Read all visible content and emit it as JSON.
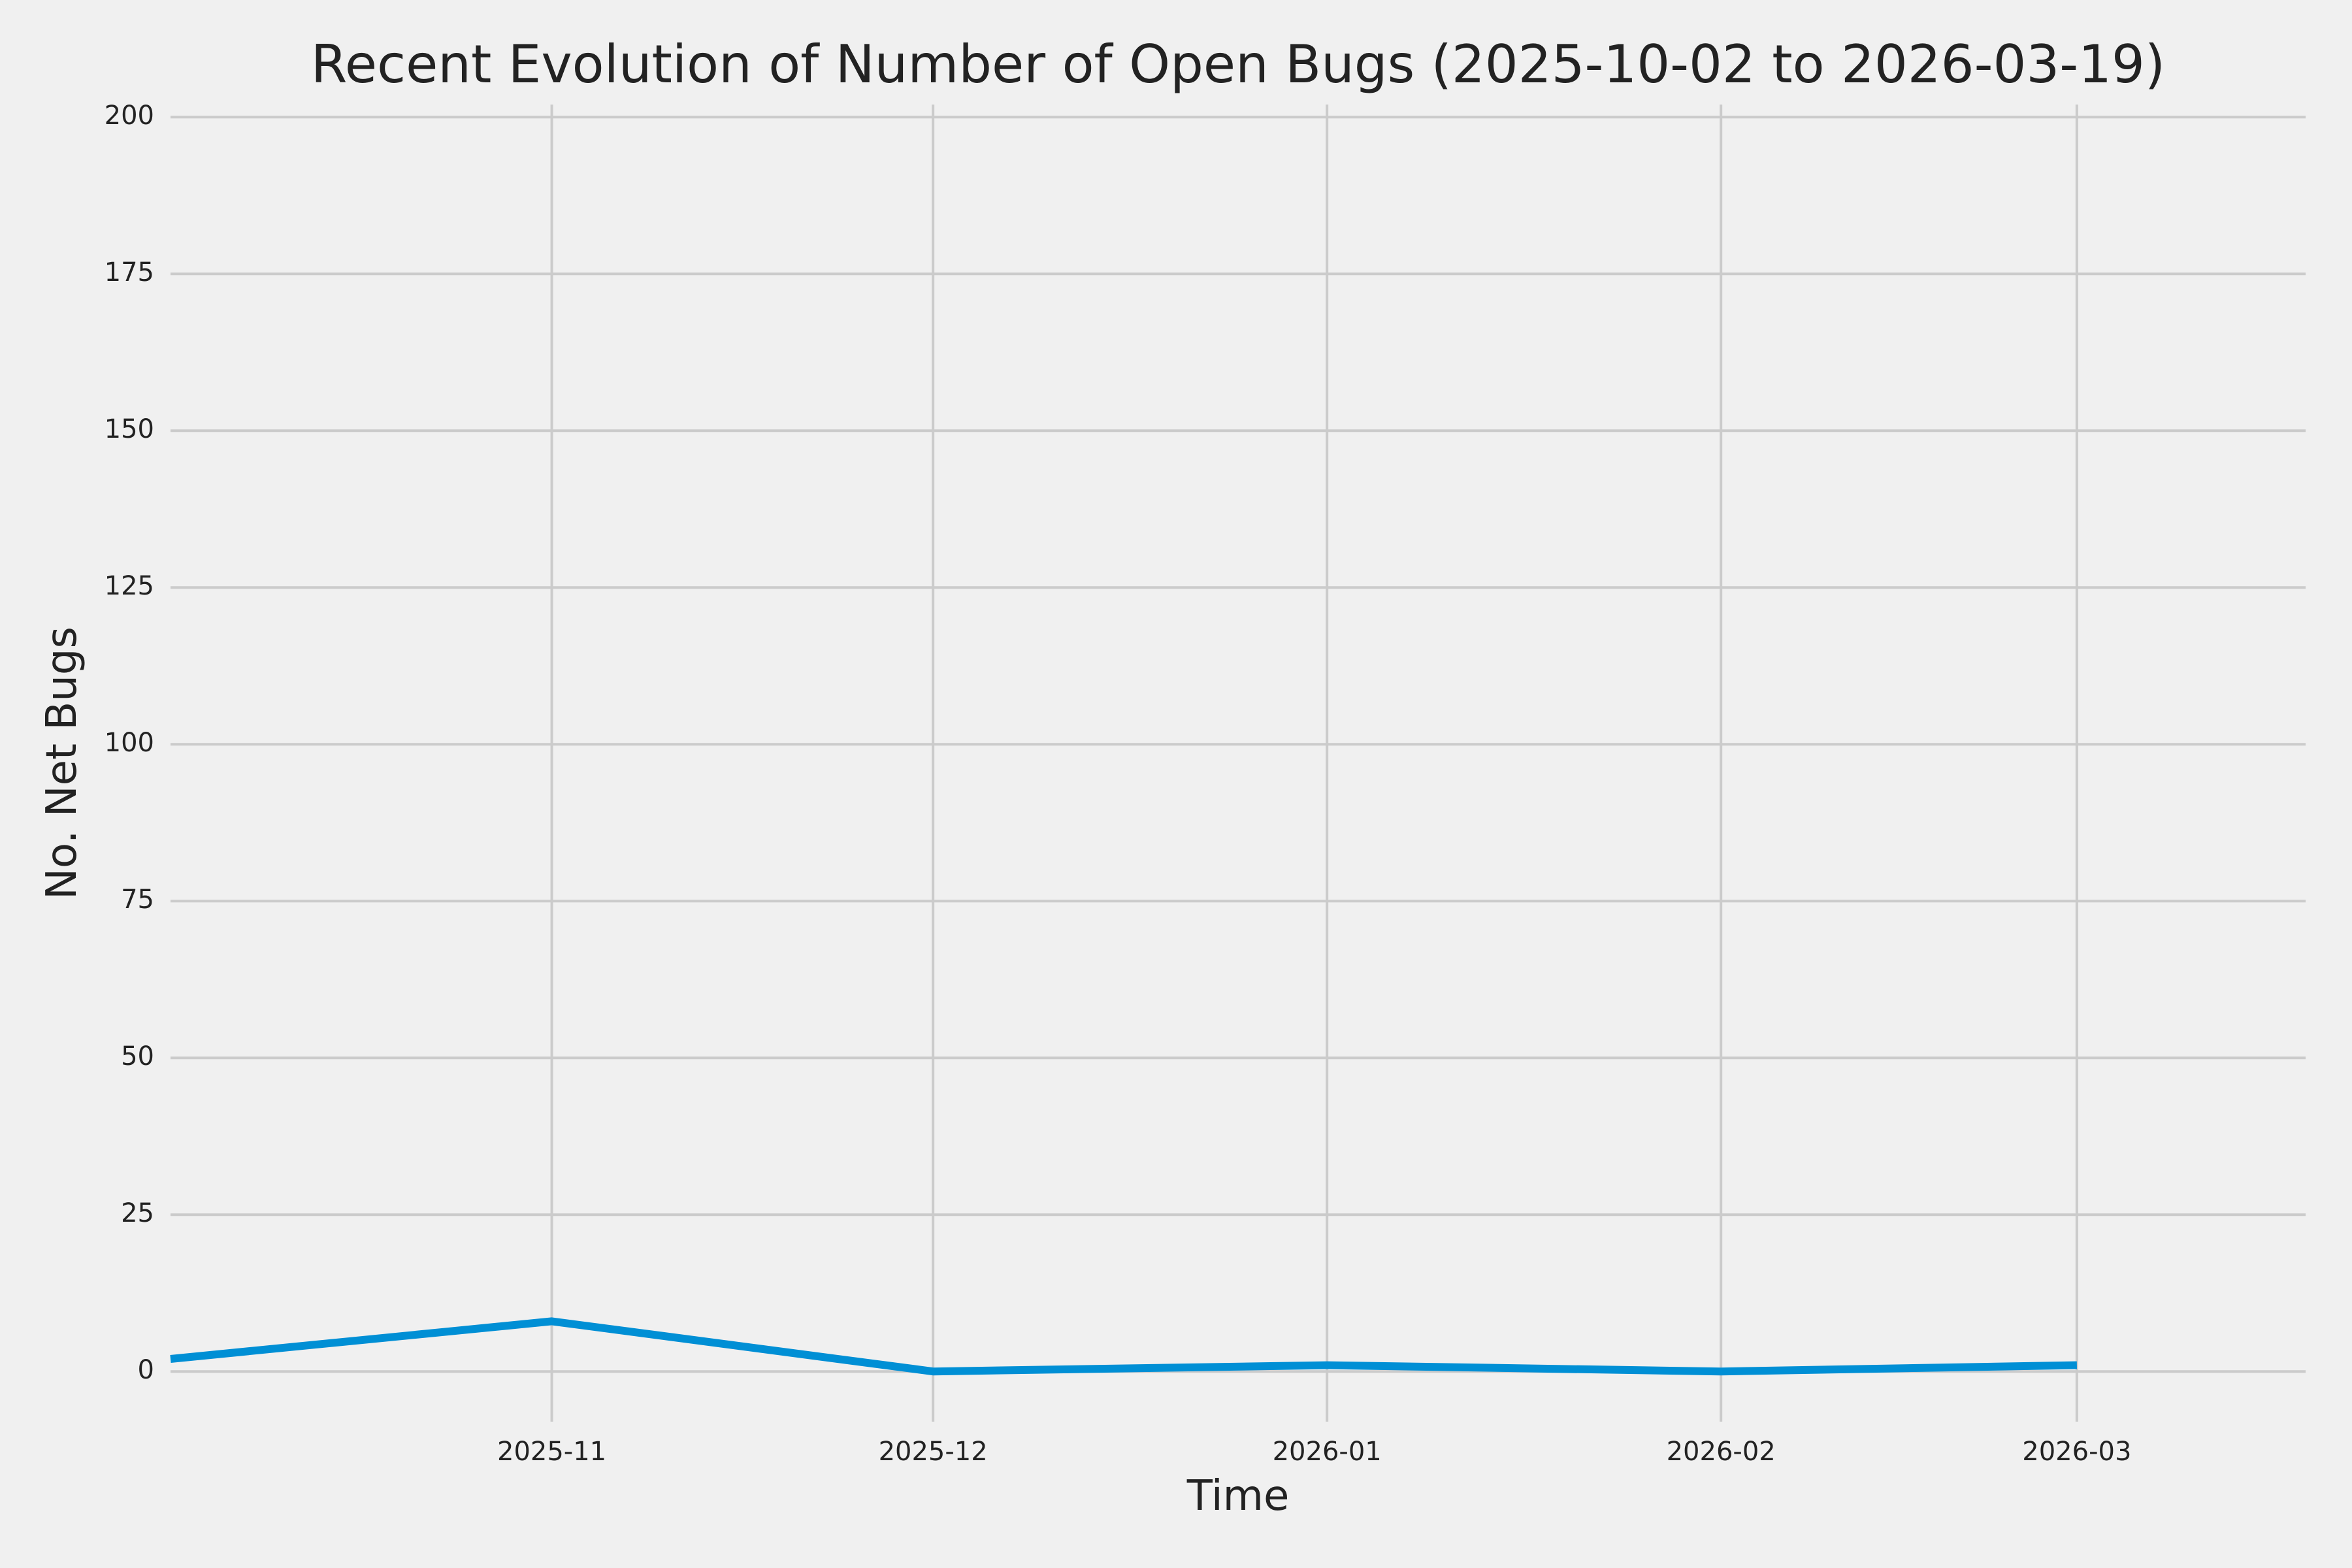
{
  "chart_data": {
    "type": "line",
    "title": "Recent Evolution of Number of Open Bugs (2025-10-02 to 2026-03-19)",
    "xlabel": "Time",
    "ylabel": "No. Net Bugs",
    "grid": true,
    "colors": {
      "line": "#008fd5",
      "grid": "#cbcbcb",
      "background": "#f0f0f0",
      "text": "#222222"
    },
    "ylim": [
      -8,
      202
    ],
    "xlim": [
      "2025-10-02",
      "2026-03-19"
    ],
    "y_ticks": [
      0,
      25,
      50,
      75,
      100,
      125,
      150,
      175,
      200
    ],
    "x_ticks": [
      {
        "date": "2025-11-01",
        "label": "2025-11"
      },
      {
        "date": "2025-12-01",
        "label": "2025-12"
      },
      {
        "date": "2026-01-01",
        "label": "2026-01"
      },
      {
        "date": "2026-02-01",
        "label": "2026-02"
      },
      {
        "date": "2026-03-01",
        "label": "2026-03"
      }
    ],
    "series": [
      {
        "x": [
          "2025-10-02",
          "2025-11-01",
          "2025-12-01",
          "2026-01-01",
          "2026-02-01",
          "2026-03-01"
        ],
        "values": [
          2,
          8,
          0,
          1,
          0,
          1
        ]
      }
    ]
  }
}
